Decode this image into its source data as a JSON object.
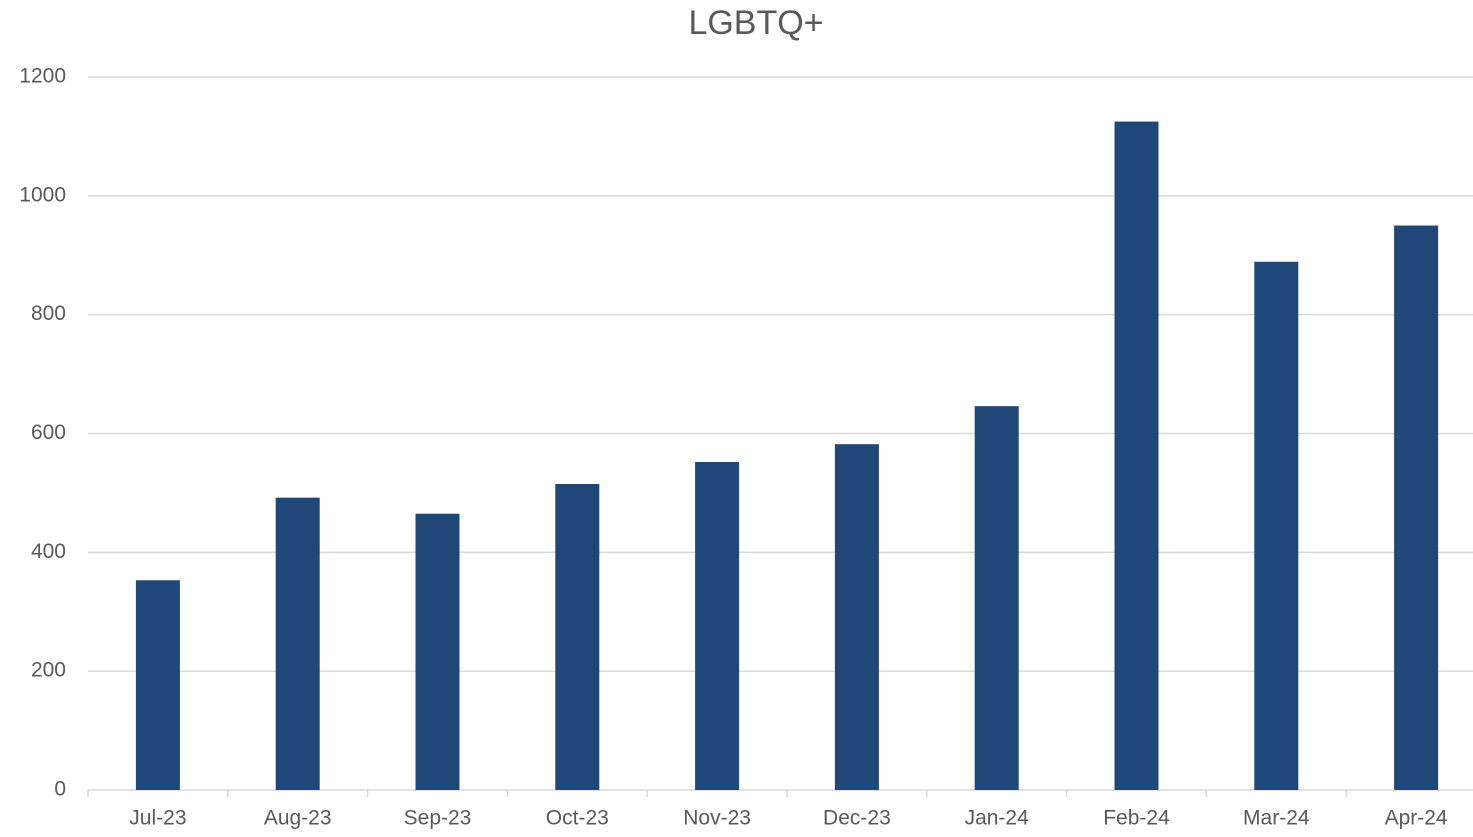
{
  "chart_data": {
    "type": "bar",
    "title": "LGBTQ+",
    "categories": [
      "Jul-23",
      "Aug-23",
      "Sep-23",
      "Oct-23",
      "Nov-23",
      "Dec-23",
      "Jan-24",
      "Feb-24",
      "Mar-24",
      "Apr-24"
    ],
    "values": [
      353,
      492,
      465,
      515,
      552,
      582,
      646,
      1125,
      889,
      950
    ],
    "color": "#1f4778",
    "ylim": [
      0,
      1200
    ],
    "yticks": [
      0,
      200,
      400,
      600,
      800,
      1000,
      1200
    ],
    "grid": true
  }
}
